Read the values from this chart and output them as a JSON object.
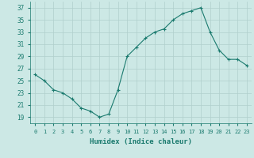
{
  "xlabel": "Humidex (Indice chaleur)",
  "x": [
    0,
    1,
    2,
    3,
    4,
    5,
    6,
    7,
    8,
    9,
    10,
    11,
    12,
    13,
    14,
    15,
    16,
    17,
    18,
    19,
    20,
    21,
    22,
    23
  ],
  "y": [
    26,
    25,
    23.5,
    23,
    22,
    20.5,
    20,
    19,
    19.5,
    23.5,
    29,
    30.5,
    32,
    33,
    33.5,
    35,
    36,
    36.5,
    37,
    33,
    30,
    28.5,
    28.5,
    27.5
  ],
  "line_color": "#1a7a6e",
  "marker": "+",
  "marker_size": 3,
  "bg_color": "#cce8e5",
  "grid_color": "#b0cfcc",
  "tick_color": "#1a7a6e",
  "label_color": "#1a7a6e",
  "ylim": [
    18,
    38
  ],
  "xlim": [
    -0.5,
    23.5
  ],
  "yticks": [
    19,
    21,
    23,
    25,
    27,
    29,
    31,
    33,
    35,
    37
  ],
  "xticks": [
    0,
    1,
    2,
    3,
    4,
    5,
    6,
    7,
    8,
    9,
    10,
    11,
    12,
    13,
    14,
    15,
    16,
    17,
    18,
    19,
    20,
    21,
    22,
    23
  ]
}
